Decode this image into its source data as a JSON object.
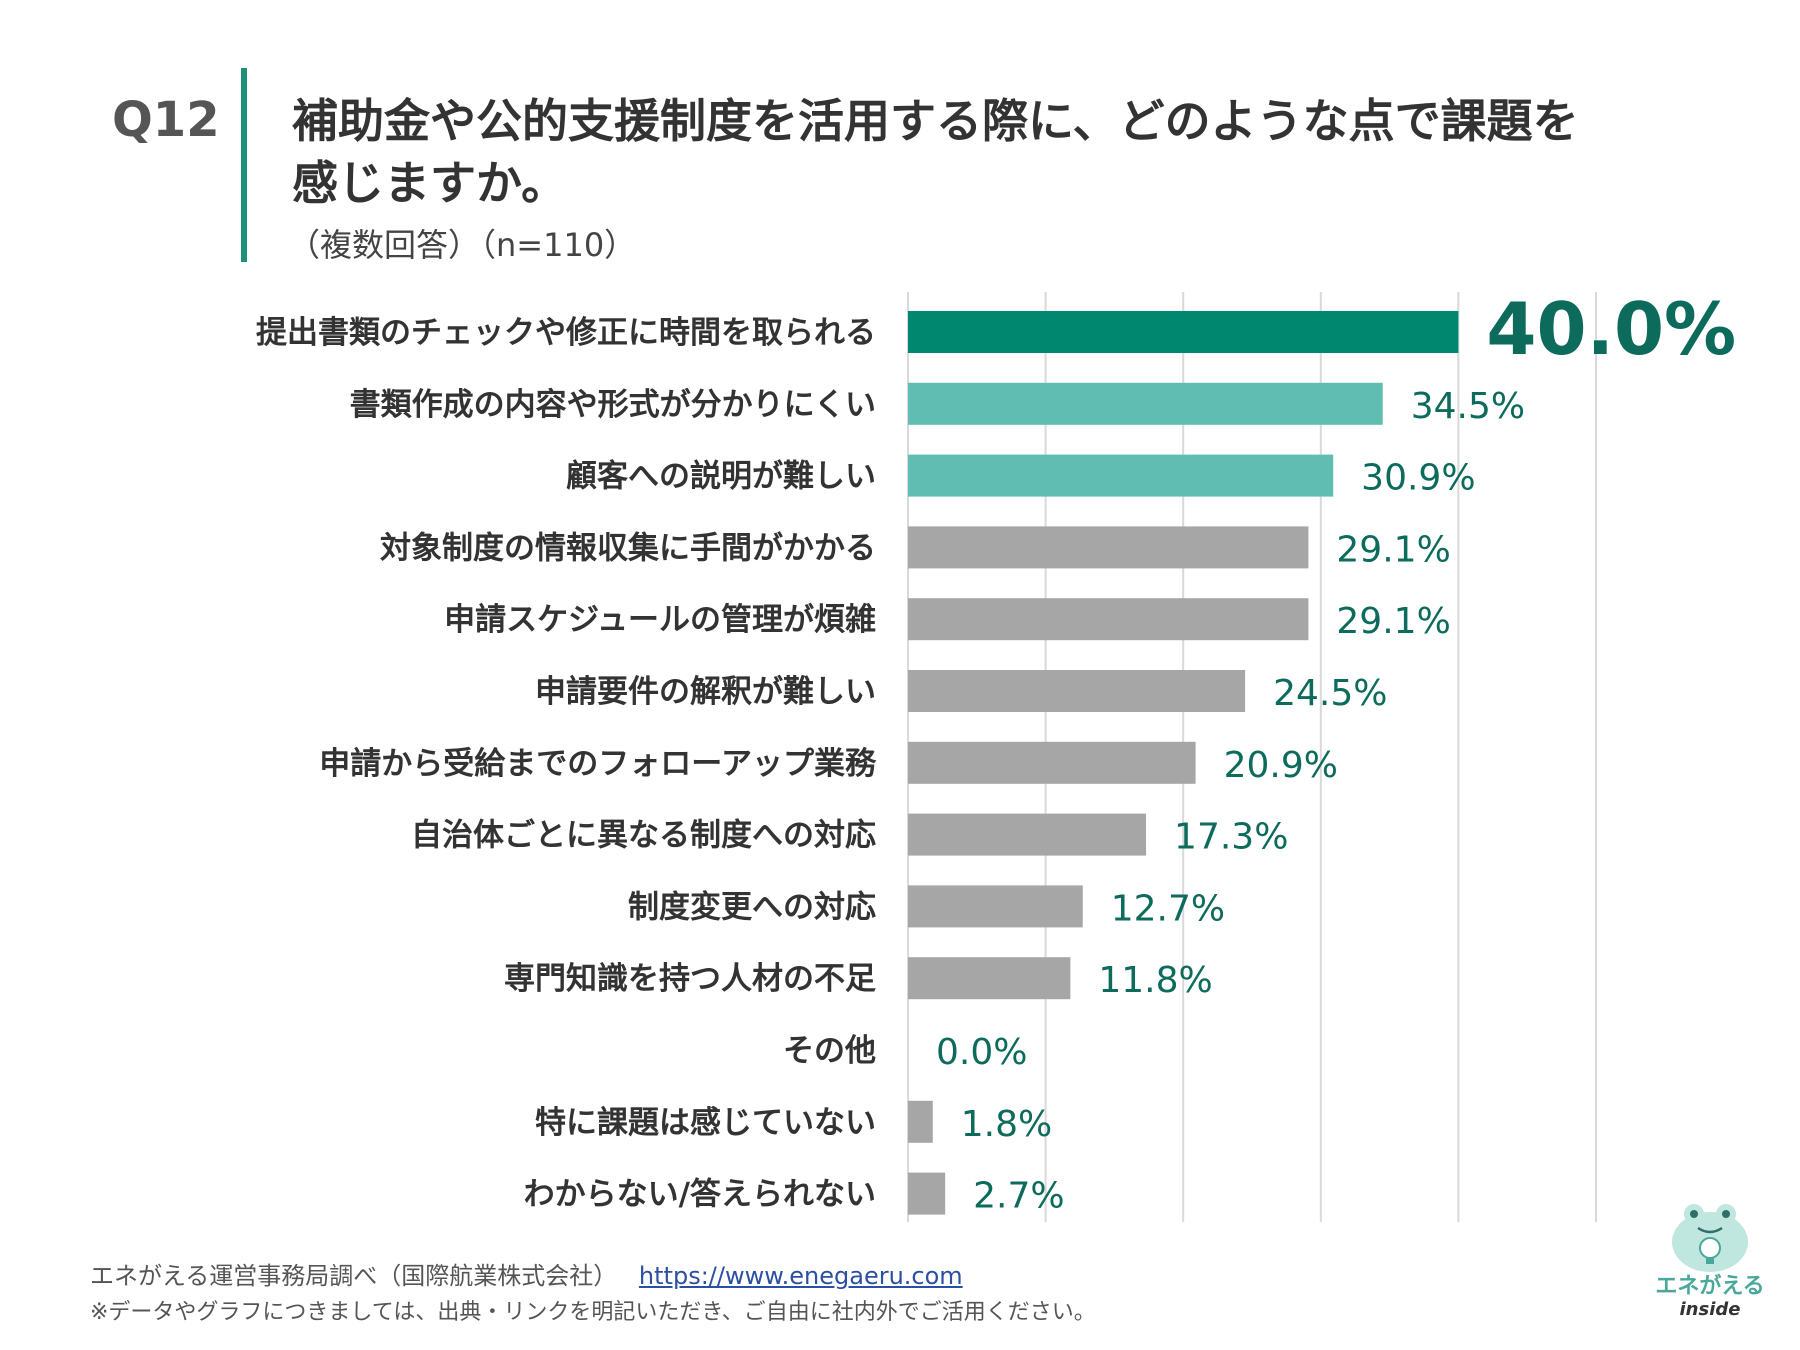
{
  "header": {
    "qnum": "Q12",
    "title": "補助金や公的支援制度を活用する際に、どのような点で課題を感じますか。",
    "subtitle": "（複数回答）（n=110）"
  },
  "chart_data": {
    "type": "bar",
    "orientation": "horizontal",
    "categories": [
      "提出書類のチェックや修正に時間を取られる",
      "書類作成の内容や形式が分かりにくい",
      "顧客への説明が難しい",
      "対象制度の情報収集に手間がかかる",
      "申請スケジュールの管理が煩雑",
      "申請要件の解釈が難しい",
      "申請から受給までのフォローアップ業務",
      "自治体ごとに異なる制度への対応",
      "制度変更への対応",
      "専門知識を持つ人材の不足",
      "その他",
      "特に課題は感じていない",
      "わからない/答えられない"
    ],
    "values": [
      40.0,
      34.5,
      30.9,
      29.1,
      29.1,
      24.5,
      20.9,
      17.3,
      12.7,
      11.8,
      0.0,
      1.8,
      2.7
    ],
    "labels": [
      "40.0%",
      "34.5%",
      "30.9%",
      "29.1%",
      "29.1%",
      "24.5%",
      "20.9%",
      "17.3%",
      "12.7%",
      "11.8%",
      "0.0%",
      "1.8%",
      "2.7%"
    ],
    "xlim": [
      0,
      50
    ],
    "gridlines": [
      0,
      10,
      20,
      30,
      40,
      50
    ],
    "grid": true,
    "colors": {
      "top": "#00876f",
      "highlight": "#5fbdb1",
      "default": "#a6a6a6",
      "label": "#0d6b5c",
      "grid": "#d9d9d9"
    }
  },
  "footer": {
    "source": "エネがえる運営事務局調べ（国際航業株式会社）",
    "url": "https://www.enegaeru.com",
    "note": "※データやグラフにつきましては、出典・リンクを明記いただき、ご自由に社内外でご活用ください。"
  },
  "logo": {
    "name": "エネがえる",
    "sub": "inside"
  }
}
